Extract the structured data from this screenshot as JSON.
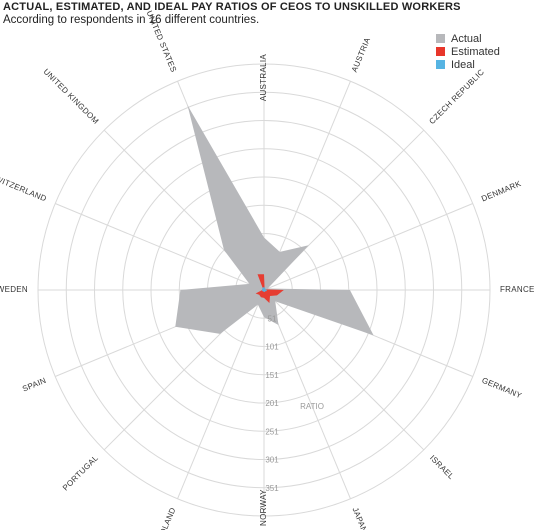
{
  "header": {
    "title": "ACTUAL, ESTIMATED, AND IDEAL PAY RATIOS OF CEOS TO UNSKILLED WORKERS",
    "subtitle": "According to respondents in 16 different countries."
  },
  "chart_data": {
    "type": "radar",
    "title": "ACTUAL, ESTIMATED, AND IDEAL PAY RATIOS OF CEOS TO UNSKILLED WORKERS",
    "subtitle": "According to respondents in 16 different countries.",
    "categories": [
      "AUSTRALIA",
      "AUSTRIA",
      "CZECH REPUBLIC",
      "DENMARK",
      "FRANCE",
      "GERMANY",
      "ISRAEL",
      "JAPAN",
      "NORWAY",
      "POLAND",
      "PORTUGAL",
      "SPAIN",
      "SWEDEN",
      "SWITZERLAND",
      "UNITED KINGDOM",
      "UNITED STATES"
    ],
    "series": [
      {
        "name": "Actual",
        "color": "#b7b8bb",
        "values": [
          93,
          73,
          112,
          7,
          152,
          210,
          28,
          67,
          48,
          28,
          110,
          170,
          148,
          28,
          100,
          354
        ]
      },
      {
        "name": "Estimated",
        "color": "#e8362a",
        "values": [
          28,
          3,
          3,
          3,
          35,
          25,
          15,
          25,
          14,
          14,
          12,
          16,
          3,
          4,
          2,
          30
        ]
      },
      {
        "name": "Ideal",
        "color": "#56b4e3",
        "values": [
          5,
          4,
          3,
          3,
          5,
          5,
          3,
          4,
          3,
          3,
          3,
          4,
          3,
          4,
          4,
          5
        ]
      }
    ],
    "ring_labels": [
      "51",
      "101",
      "151",
      "201",
      "251",
      "301",
      "351"
    ],
    "axis_title": "RATIO",
    "rmax": 400,
    "legend_position": "top-right",
    "grid": true
  }
}
